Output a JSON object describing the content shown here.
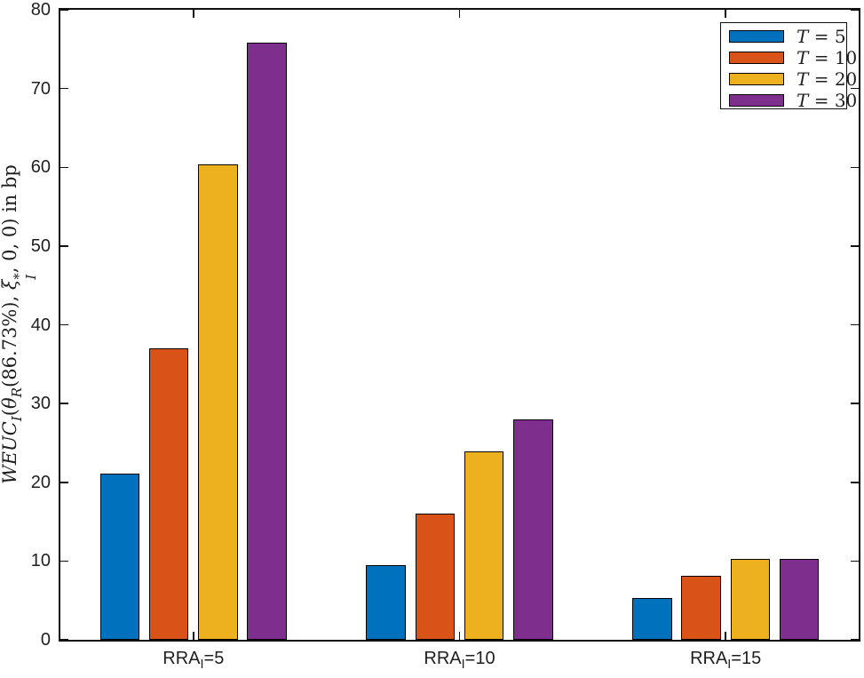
{
  "chart_data": {
    "type": "bar",
    "title": "",
    "xlabel": "",
    "ylabel_plain": "WEUC_I(theta_R(86.73%), xi_I^*, 0, 0) in bp",
    "ylabel_segments": [
      {
        "t": "WEUC",
        "it": true
      },
      {
        "sub": "I"
      },
      {
        "t": "("
      },
      {
        "t": "θ",
        "it": true
      },
      {
        "sub": "R"
      },
      {
        "t": "(86.73%), "
      },
      {
        "t": "ξ",
        "it": true
      },
      {
        "supsub": {
          "sup": "*",
          "sub": "I"
        }
      },
      {
        "t": ", 0, 0) in bp"
      }
    ],
    "categories": [
      {
        "plain": "RRA_I=5",
        "segments": [
          {
            "t": "RRA"
          },
          {
            "sub": "I"
          },
          {
            "t": "=5"
          }
        ]
      },
      {
        "plain": "RRA_I=10",
        "segments": [
          {
            "t": "RRA"
          },
          {
            "sub": "I"
          },
          {
            "t": "=10"
          }
        ]
      },
      {
        "plain": "RRA_I=15",
        "segments": [
          {
            "t": "RRA"
          },
          {
            "sub": "I"
          },
          {
            "t": "=15"
          }
        ]
      }
    ],
    "series": [
      {
        "name": "T = 5",
        "name_var": "T",
        "name_val": "5",
        "color": "#0072BD",
        "values": [
          21.1,
          9.5,
          5.3
        ]
      },
      {
        "name": "T = 10",
        "name_var": "T",
        "name_val": "10",
        "color": "#D95319",
        "values": [
          37.0,
          16.0,
          8.1
        ]
      },
      {
        "name": "T = 20",
        "name_var": "T",
        "name_val": "20",
        "color": "#EDB120",
        "values": [
          60.4,
          23.9,
          10.3
        ]
      },
      {
        "name": "T = 30",
        "name_var": "T",
        "name_val": "30",
        "color": "#7E2F8E",
        "values": [
          75.8,
          28.0,
          10.3
        ]
      }
    ],
    "ylim": [
      0,
      80
    ],
    "yticks": [
      0,
      10,
      20,
      30,
      40,
      50,
      60,
      70,
      80
    ],
    "grid": false,
    "legend_position": "top-right",
    "legend_labels": [
      "T = 5",
      "T = 10",
      "T = 20",
      "T = 30"
    ],
    "colors": {
      "bar_edge": "#000000",
      "axis": "#111111",
      "text": "#1f1f1f",
      "background": "#ffffff"
    }
  }
}
